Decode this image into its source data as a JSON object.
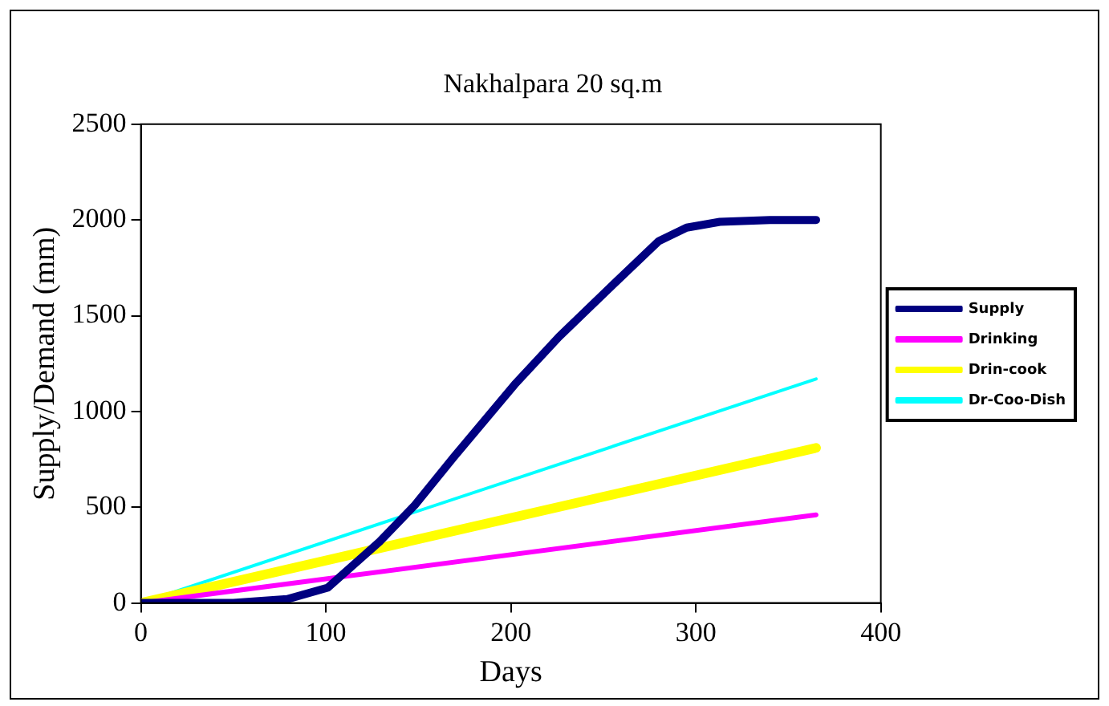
{
  "chart_data": {
    "type": "line",
    "title": "Nakhalpara 20 sq.m",
    "xlabel": "Days",
    "ylabel": "Supply/Demand (mm)",
    "xlim": [
      0,
      400
    ],
    "xticks": [
      0,
      100,
      200,
      300,
      400
    ],
    "ylim": [
      0,
      2500
    ],
    "yticks": [
      0,
      500,
      1000,
      1500,
      2000,
      2500
    ],
    "grid": false,
    "legend": "right",
    "marker": "none",
    "line_style": "solid",
    "series": [
      {
        "name": "Supply",
        "color": "#000080",
        "x": [
          0,
          15,
          50,
          79,
          101,
          129,
          148,
          169,
          202,
          226,
          255,
          280,
          295,
          313,
          340,
          365
        ],
        "values": [
          0,
          0,
          0,
          20,
          80,
          320,
          510,
          760,
          1140,
          1390,
          1660,
          1890,
          1960,
          1990,
          2000,
          2000
        ]
      },
      {
        "name": "Drinking",
        "color": "#ff00ff",
        "x": [
          0,
          365
        ],
        "values": [
          0,
          460
        ]
      },
      {
        "name": "Drin-cook",
        "color": "#ffff00",
        "x": [
          0,
          365
        ],
        "values": [
          0,
          810
        ]
      },
      {
        "name": "Dr-Coo-Dish",
        "color": "#00ffff",
        "x": [
          0,
          365
        ],
        "values": [
          0,
          1170
        ]
      }
    ]
  }
}
